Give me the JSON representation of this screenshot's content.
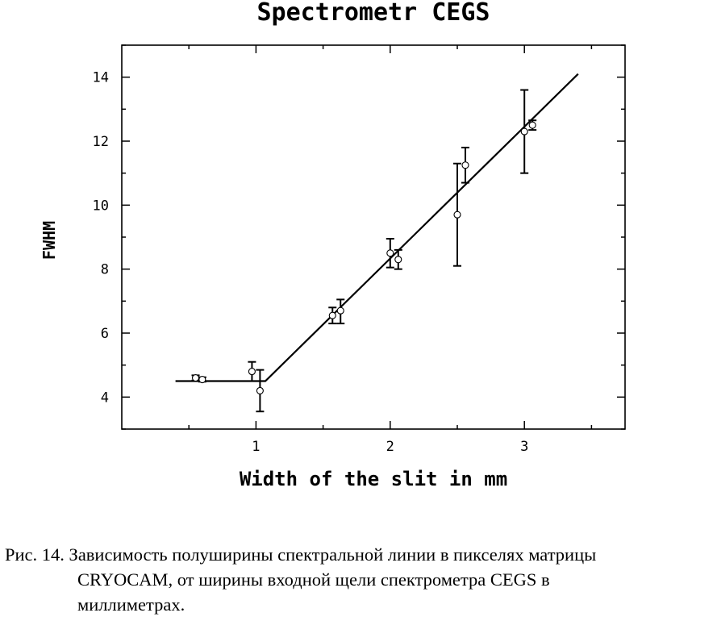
{
  "chart_data": {
    "type": "scatter",
    "title": "Spectrometr CEGS",
    "xlabel": "Width of the slit in mm",
    "ylabel": "FWHM",
    "xlim": [
      0.0,
      3.75
    ],
    "ylim": [
      3.0,
      15.0
    ],
    "xticks": [
      1,
      2,
      3
    ],
    "yticks": [
      4,
      6,
      8,
      10,
      12,
      14
    ],
    "grid": false,
    "legend": "none",
    "points": [
      {
        "x": 0.55,
        "y": 4.6,
        "ylow": 4.52,
        "yhigh": 4.68
      },
      {
        "x": 0.6,
        "y": 4.55,
        "ylow": 4.48,
        "yhigh": 4.62
      },
      {
        "x": 0.97,
        "y": 4.8,
        "ylow": 4.5,
        "yhigh": 5.1
      },
      {
        "x": 1.03,
        "y": 4.2,
        "ylow": 3.55,
        "yhigh": 4.85
      },
      {
        "x": 1.57,
        "y": 6.55,
        "ylow": 6.3,
        "yhigh": 6.8
      },
      {
        "x": 1.63,
        "y": 6.7,
        "ylow": 6.3,
        "yhigh": 7.05
      },
      {
        "x": 2.0,
        "y": 8.5,
        "ylow": 8.05,
        "yhigh": 8.95
      },
      {
        "x": 2.06,
        "y": 8.3,
        "ylow": 8.0,
        "yhigh": 8.6
      },
      {
        "x": 2.5,
        "y": 9.7,
        "ylow": 8.1,
        "yhigh": 11.3
      },
      {
        "x": 2.56,
        "y": 11.25,
        "ylow": 10.7,
        "yhigh": 11.8
      },
      {
        "x": 3.0,
        "y": 12.3,
        "ylow": 11.0,
        "yhigh": 13.6
      },
      {
        "x": 3.06,
        "y": 12.5,
        "ylow": 12.35,
        "yhigh": 12.65
      }
    ],
    "fit_line": [
      {
        "x": 0.4,
        "y": 4.5
      },
      {
        "x": 1.07,
        "y": 4.5
      },
      {
        "x": 3.4,
        "y": 14.1
      }
    ]
  },
  "caption": {
    "line1": "Рис. 14. Зависимость полуширины спектральной линии в пикселях матрицы",
    "line2": "CRYOCAM, от ширины входной щели спектрометра CEGS в",
    "line3": "миллиметрах."
  }
}
